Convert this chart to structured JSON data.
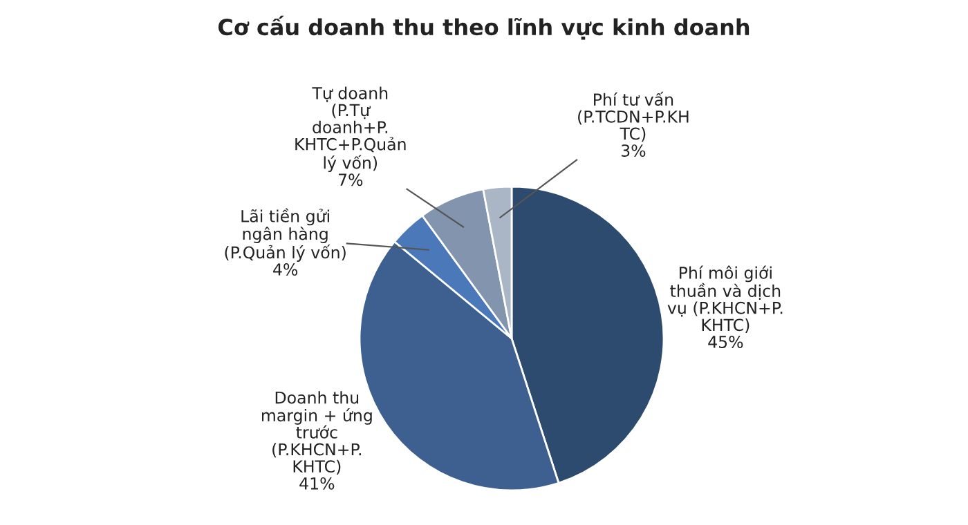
{
  "chart_data": {
    "type": "pie",
    "title": "Cơ cấu doanh thu theo lĩnh vực kinh doanh",
    "categories": [
      "Phí môi giới\nthuần và dịch\nvụ (P.KHCN+P.\nKHTC)",
      "Doanh thu\nmargin + ứng\ntrước\n(P.KHCN+P.\nKHTC)",
      "Lãi tiền gửi\nngân hàng\n(P.Quản lý vốn)",
      "Tự doanh\n(P.Tự\ndoanh+P.\nKHTC+P.Quản\nlý vốn)",
      "Phí tư vấn\n(P.TCDN+P.KH\nTC)"
    ],
    "values": [
      45,
      41,
      4,
      7,
      3
    ],
    "colors": [
      "#2d4a6f",
      "#3d6090",
      "#4a78b8",
      "#8394ae",
      "#aab5c6"
    ],
    "value_labels": [
      "45%",
      "41%",
      "4%",
      "7%",
      "3%"
    ]
  }
}
